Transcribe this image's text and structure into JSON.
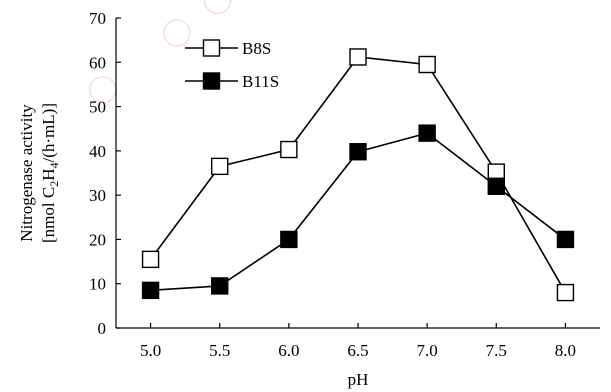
{
  "chart_data": {
    "type": "line",
    "title": "",
    "xlabel": "pH",
    "ylabel_line1": "Nitrogenase activity",
    "ylabel_line2_parts": [
      "[nmol C",
      "2",
      "H",
      "4",
      "/(h·mL)]"
    ],
    "x": [
      5.0,
      5.5,
      6.0,
      6.5,
      7.0,
      7.5,
      8.0
    ],
    "x_tick_labels": [
      "5.0",
      "5.5",
      "6.0",
      "6.5",
      "7.0",
      "7.5",
      "8.0"
    ],
    "y_ticks": [
      0,
      10,
      20,
      30,
      40,
      50,
      60,
      70
    ],
    "y_tick_labels": [
      "0",
      "10",
      "20",
      "30",
      "40",
      "50",
      "60",
      "70"
    ],
    "ylim": [
      0,
      70
    ],
    "xlim": [
      4.75,
      8.25
    ],
    "grid": false,
    "legend_placement": "top-left",
    "series": [
      {
        "name": "B8S",
        "marker": "open-square",
        "values": [
          15.5,
          36.5,
          40.3,
          61.2,
          59.5,
          35.2,
          8.0
        ]
      },
      {
        "name": "B11S",
        "marker": "filled-square",
        "values": [
          8.5,
          9.5,
          20.0,
          39.8,
          44.0,
          32.0,
          20.0
        ]
      }
    ],
    "colors": {
      "line": "#000000",
      "open_fill": "#ffffff",
      "filled_fill": "#000000",
      "background": "#ffffff"
    }
  }
}
